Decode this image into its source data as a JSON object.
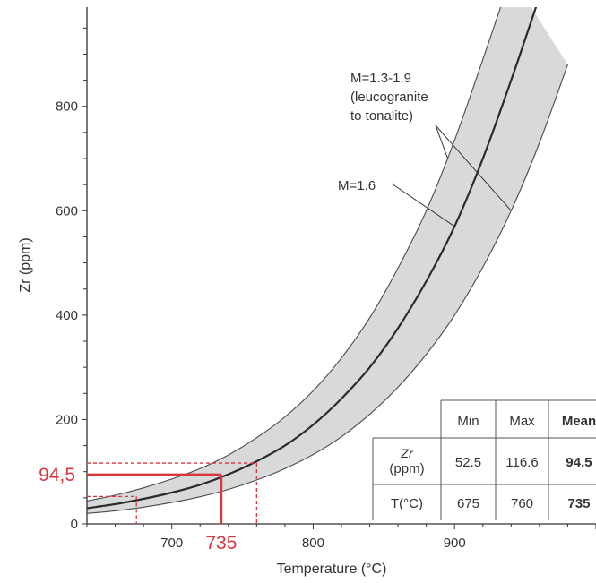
{
  "chart_data": {
    "type": "line",
    "xlabel": "Temperature (°C)",
    "ylabel": "Zr (ppm)",
    "xlim": [
      640,
      1000
    ],
    "ylim": [
      0,
      990
    ],
    "x_ticks": [
      700,
      800,
      900
    ],
    "y_ticks": [
      0,
      200,
      400,
      600,
      800
    ],
    "series": [
      {
        "name": "M=1.6",
        "style": "central-curve",
        "x": [
          640,
          660,
          680,
          700,
          720,
          740,
          760,
          780,
          800,
          820,
          840,
          860,
          880,
          900,
          920,
          940,
          960
        ],
        "y": [
          30,
          38,
          48,
          60,
          75,
          95,
          120,
          150,
          190,
          240,
          300,
          375,
          465,
          570,
          700,
          850,
          1010
        ]
      },
      {
        "name": "M=1.3-1.9",
        "style": "band-upper",
        "x": [
          640,
          660,
          680,
          700,
          720,
          740,
          760,
          780,
          800,
          820,
          840,
          860,
          880,
          900,
          920,
          940
        ],
        "y": [
          44,
          55,
          69,
          86,
          106,
          132,
          165,
          205,
          255,
          318,
          395,
          490,
          600,
          735,
          890,
          1050
        ]
      },
      {
        "name": "M=1.3-1.9",
        "style": "band-lower",
        "x": [
          640,
          660,
          680,
          700,
          720,
          740,
          760,
          780,
          800,
          820,
          840,
          860,
          880,
          900,
          920,
          940,
          960,
          980
        ],
        "y": [
          20,
          25,
          32,
          41,
          52,
          66,
          84,
          106,
          133,
          167,
          210,
          262,
          325,
          400,
          492,
          600,
          730,
          880
        ]
      }
    ],
    "annotations": [
      {
        "text_lines": [
          "M=1.3-1.9",
          "(leucogranite",
          "to tonalite)"
        ]
      },
      {
        "text_lines": [
          "M=1.6"
        ]
      }
    ],
    "highlight": {
      "zr_mean": 94.5,
      "zr_min": 52.5,
      "zr_max": 116.6,
      "t_mean": 735,
      "t_min": 675,
      "t_max": 760,
      "zr_label": "94,5",
      "t_label": "735",
      "color": "#d9363e"
    },
    "table": {
      "headers": [
        "",
        "Min",
        "Max",
        "Mean"
      ],
      "rows": [
        {
          "label": [
            "Zr",
            "(ppm)"
          ],
          "values": [
            "52.5",
            "116.6",
            "94.5"
          ]
        },
        {
          "label": [
            "T(°C)"
          ],
          "values": [
            "675",
            "760",
            "735"
          ]
        }
      ]
    },
    "grid": false,
    "band_fill": "#d8d9db",
    "curve_color": "#2b2b2b"
  }
}
